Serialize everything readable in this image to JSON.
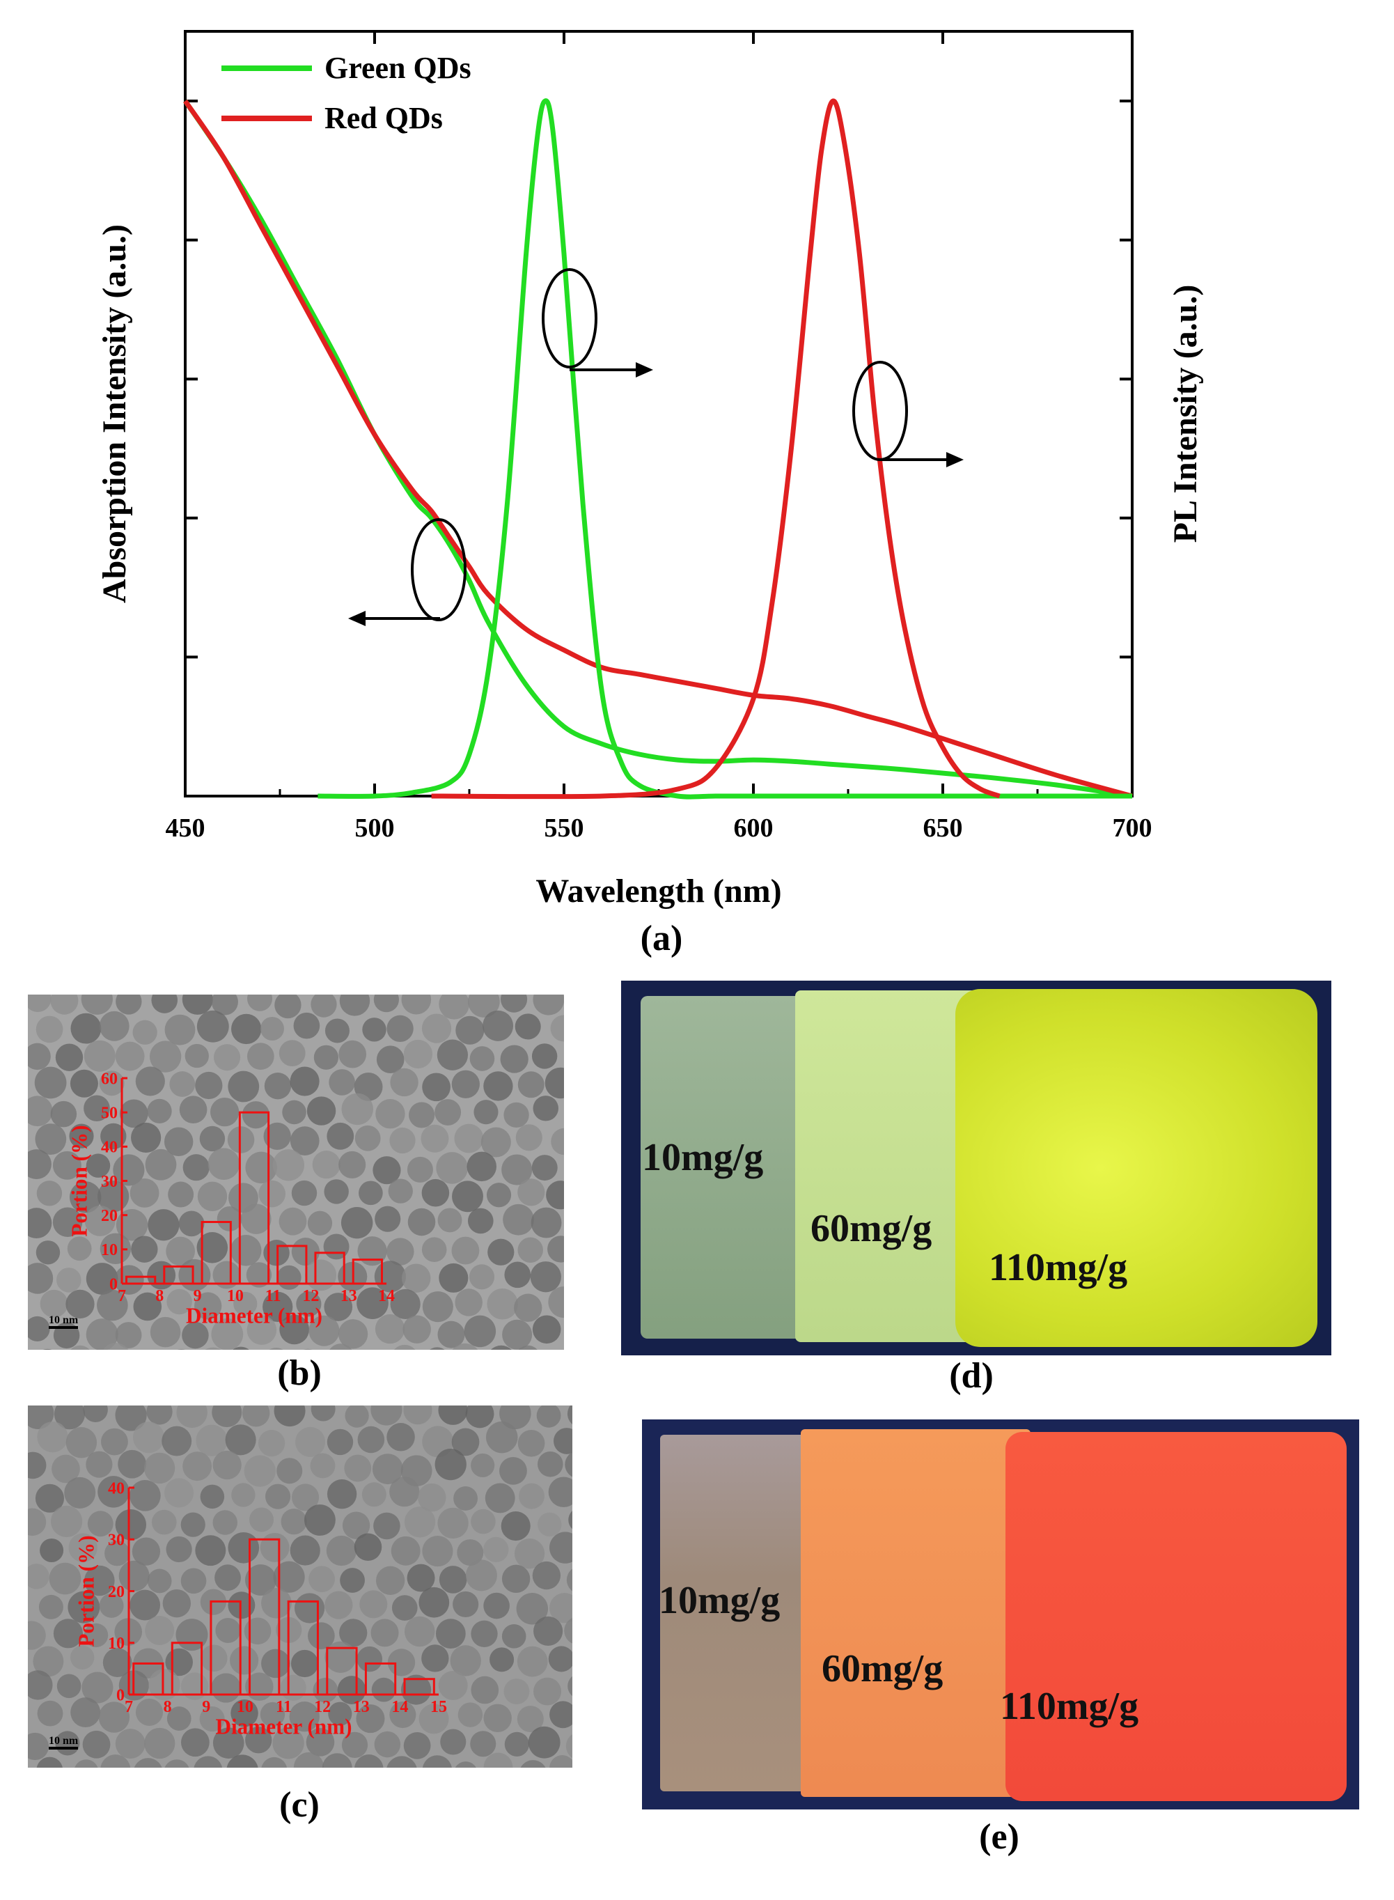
{
  "chart_data": {
    "type": "line",
    "title": "",
    "xlabel": "Wavelength (nm)",
    "ylabel_left": "Absorption Intensity (a.u.)",
    "ylabel_right": "PL Intensity (a.u.)",
    "xlim": [
      450,
      700
    ],
    "x_ticks": [
      "450",
      "500",
      "550",
      "600",
      "650",
      "700"
    ],
    "legend": [
      {
        "name": "Green QDs",
        "color": "#22dd22"
      },
      {
        "name": "Red QDs",
        "color": "#e02020"
      }
    ],
    "legend_position": "top-left",
    "series": [
      {
        "name": "Green QDs absorption",
        "color": "#22dd22",
        "x": [
          450,
          460,
          470,
          480,
          490,
          500,
          510,
          515,
          520,
          525,
          530,
          540,
          550,
          560,
          570,
          580,
          590,
          600,
          610,
          620,
          640,
          660,
          680,
          700
        ],
        "y": [
          1.0,
          0.92,
          0.83,
          0.73,
          0.63,
          0.52,
          0.43,
          0.4,
          0.36,
          0.31,
          0.25,
          0.16,
          0.1,
          0.075,
          0.06,
          0.052,
          0.05,
          0.052,
          0.05,
          0.046,
          0.038,
          0.028,
          0.016,
          0.0
        ]
      },
      {
        "name": "Red QDs absorption",
        "color": "#e02020",
        "x": [
          450,
          460,
          470,
          480,
          490,
          500,
          510,
          515,
          520,
          525,
          530,
          540,
          550,
          560,
          570,
          580,
          590,
          600,
          610,
          620,
          630,
          640,
          660,
          680,
          700
        ],
        "y": [
          1.0,
          0.92,
          0.82,
          0.72,
          0.62,
          0.52,
          0.44,
          0.41,
          0.37,
          0.33,
          0.29,
          0.24,
          0.21,
          0.185,
          0.175,
          0.165,
          0.155,
          0.145,
          0.14,
          0.13,
          0.115,
          0.1,
          0.065,
          0.03,
          0.0
        ]
      },
      {
        "name": "Green QDs PL",
        "color": "#22dd22",
        "x": [
          485,
          500,
          510,
          520,
          525,
          530,
          535,
          540,
          543,
          545,
          547,
          550,
          555,
          560,
          565,
          570,
          580,
          590,
          600,
          620,
          640,
          660,
          680,
          700
        ],
        "y": [
          0.0,
          0.0,
          0.005,
          0.02,
          0.06,
          0.18,
          0.42,
          0.78,
          0.95,
          1.0,
          0.96,
          0.78,
          0.42,
          0.15,
          0.05,
          0.015,
          0.0,
          0.0,
          0.0,
          0.0,
          0.0,
          0.0,
          0.0,
          0.0
        ]
      },
      {
        "name": "Red QDs PL",
        "color": "#e02020",
        "x": [
          515,
          560,
          580,
          590,
          600,
          605,
          610,
          615,
          618,
          621,
          624,
          628,
          632,
          636,
          640,
          645,
          650,
          655,
          660,
          665
        ],
        "y": [
          0.0,
          0.0,
          0.01,
          0.04,
          0.14,
          0.28,
          0.5,
          0.78,
          0.93,
          1.0,
          0.94,
          0.78,
          0.55,
          0.37,
          0.24,
          0.13,
          0.07,
          0.03,
          0.01,
          0.0
        ]
      }
    ],
    "annotations": [
      "left arrow: absorption",
      "right arrow: PL",
      "right arrow: PL"
    ]
  },
  "panels": {
    "a": "(a)",
    "b": "(b)",
    "c": "(c)",
    "d": "(d)",
    "e": "(e)"
  },
  "hist_b": {
    "ylabel": "Portion (%)",
    "xlabel": "Diameter (nm)",
    "y_ticks": [
      "0",
      "10",
      "20",
      "30",
      "40",
      "50",
      "60"
    ],
    "x_ticks": [
      "7",
      "8",
      "9",
      "10",
      "11",
      "12",
      "13",
      "14"
    ],
    "values": [
      2,
      5,
      18,
      50,
      11,
      9,
      7
    ],
    "ymax": 60,
    "scale_bar": "10 nm"
  },
  "hist_c": {
    "ylabel": "Portion (%)",
    "xlabel": "Diameter (nm)",
    "y_ticks": [
      "0",
      "10",
      "20",
      "30",
      "40"
    ],
    "x_ticks": [
      "7",
      "8",
      "9",
      "10",
      "11",
      "12",
      "13",
      "14",
      "15"
    ],
    "values": [
      6,
      10,
      18,
      30,
      18,
      9,
      6,
      3
    ],
    "ymax": 40,
    "scale_bar": "10 nm"
  },
  "photo_d": {
    "labels": [
      "10mg/g",
      "60mg/g",
      "110mg/g"
    ]
  },
  "photo_e": {
    "labels": [
      "10mg/g",
      "60mg/g",
      "110mg/g"
    ]
  }
}
